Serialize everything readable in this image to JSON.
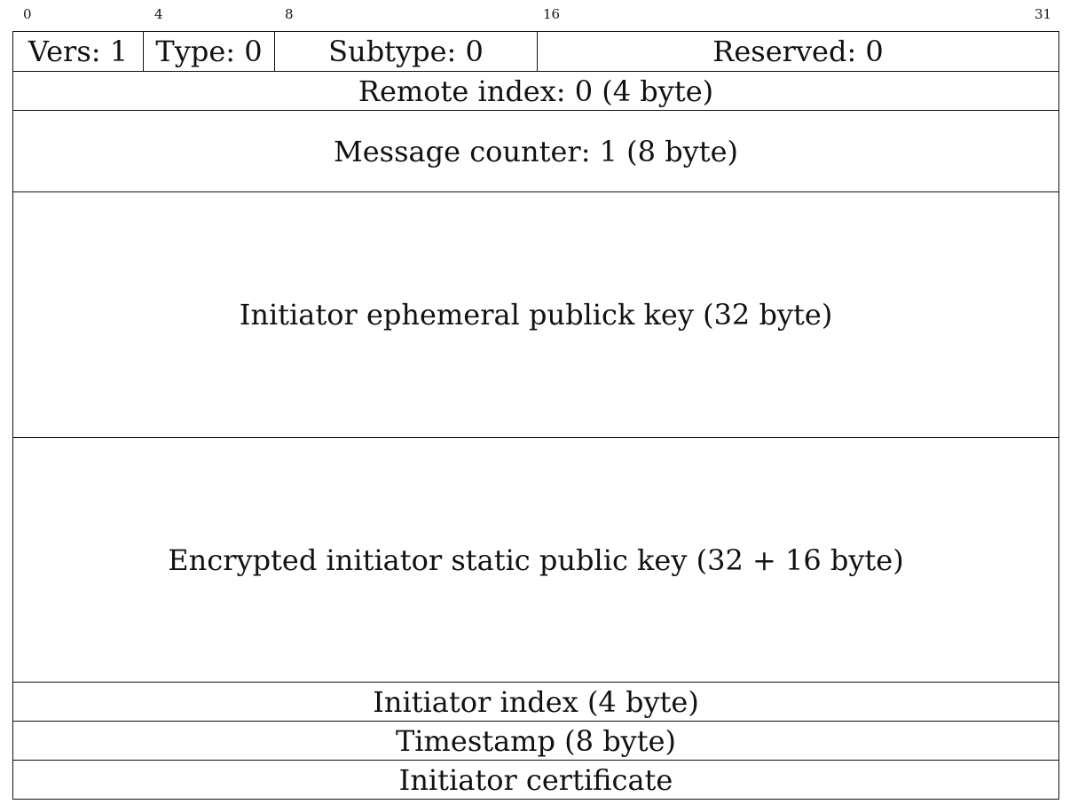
{
  "bit_ruler": [
    {
      "label": "0",
      "bit": 0
    },
    {
      "label": "4",
      "bit": 4
    },
    {
      "label": "8",
      "bit": 8
    },
    {
      "label": "16",
      "bit": 16
    },
    {
      "label": "31",
      "bit": 31
    }
  ],
  "header_fields": {
    "version": "Vers: 1",
    "type": "Type: 0",
    "subtype": "Subtype: 0",
    "reserved": "Reserved: 0"
  },
  "fields": {
    "remote_index": "Remote index: 0 (4 byte)",
    "message_counter": "Message counter: 1 (8 byte)",
    "ephemeral_key": "Initiator ephemeral publick key (32 byte)",
    "static_key": "Encrypted initiator static public key (32 + 16 byte)",
    "initiator_index": "Initiator index (4 byte)",
    "timestamp": "Timestamp (8 byte)",
    "certificate": "Initiator certificate"
  }
}
